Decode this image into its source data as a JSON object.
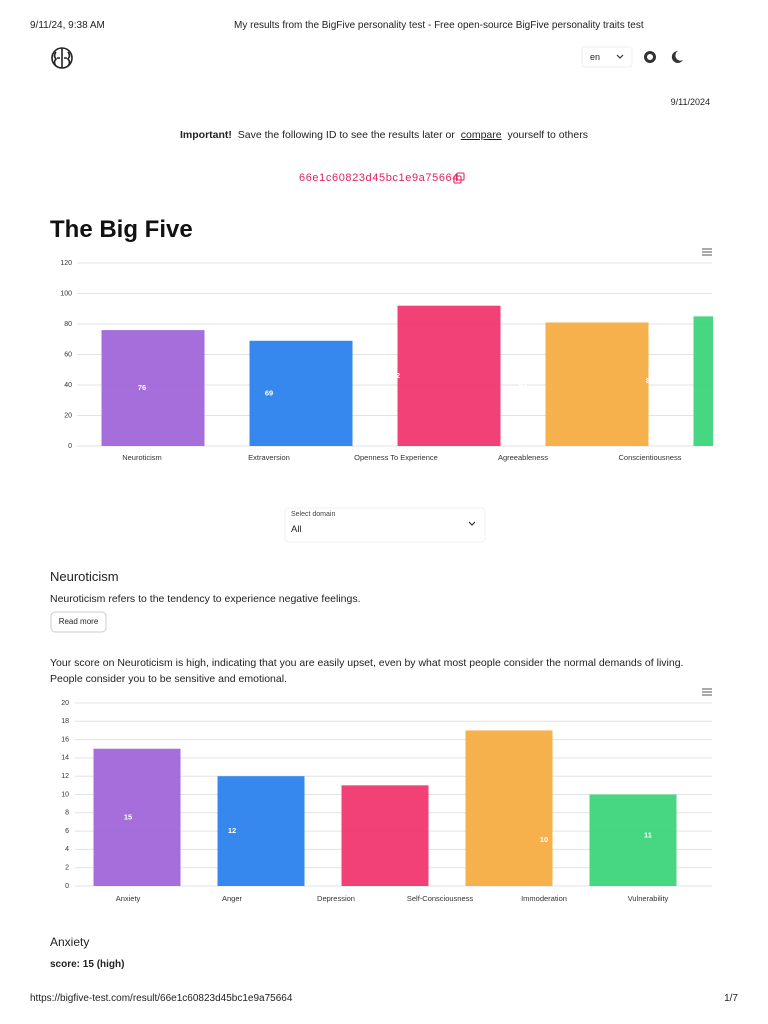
{
  "print_header": {
    "datetime": "9/11/24, 9:38 AM",
    "title": "My results from the BigFive personality test - Free open-source BigFive personality traits test"
  },
  "nav": {
    "language": "en"
  },
  "date": "9/11/2024",
  "notice": {
    "label": "Important!",
    "text": "Save the following ID to see the results later or",
    "link": "compare",
    "text_after": "yourself to others"
  },
  "result_id": "66e1c60823d45bc1e9a75664",
  "heading": "The Big Five",
  "chart_data": [
    {
      "type": "bar",
      "categories": [
        "Neuroticism",
        "Extraversion",
        "Openness To Experience",
        "Agreeableness",
        "Conscientiousness"
      ],
      "values": [
        76,
        69,
        92,
        81,
        85
      ],
      "colors": [
        "#a066d8",
        "#2b82ee",
        "#f0376f",
        "#f5ad42",
        "#3dd47a"
      ],
      "ylim": [
        0,
        120
      ],
      "yticks": [
        0,
        20,
        40,
        60,
        80,
        100,
        120
      ],
      "grid": true
    },
    {
      "type": "bar",
      "categories": [
        "Anxiety",
        "Anger",
        "Depression",
        "Self-Consciousness",
        "Immoderation",
        "Vulnerability"
      ],
      "values": [
        15,
        12,
        11,
        17,
        10,
        11
      ],
      "colors": [
        "#a066d8",
        "#2b82ee",
        "#f0376f",
        "#f5ad42",
        "#3dd47a",
        "#f5ad42"
      ],
      "ylim": [
        0,
        20
      ],
      "yticks": [
        0,
        2,
        4,
        6,
        8,
        10,
        12,
        14,
        16,
        18,
        20
      ],
      "grid": true
    }
  ],
  "select": {
    "label": "Select domain",
    "value": "All"
  },
  "domain": {
    "title": "Neuroticism",
    "description": "Neuroticism refers to the tendency to experience negative feelings.",
    "button": "Read more",
    "score_text": [
      "Your score on Neuroticism is high, indicating that you are easily upset, even by what most people consider the normal demands of living.",
      "People consider you to be sensitive and emotional."
    ]
  },
  "facet": {
    "title": "Anxiety",
    "score": "score: 15 (high)"
  },
  "print_footer": {
    "url": "https://bigfive-test.com/result/66e1c60823d45bc1e9a75664",
    "page": "1/7"
  }
}
